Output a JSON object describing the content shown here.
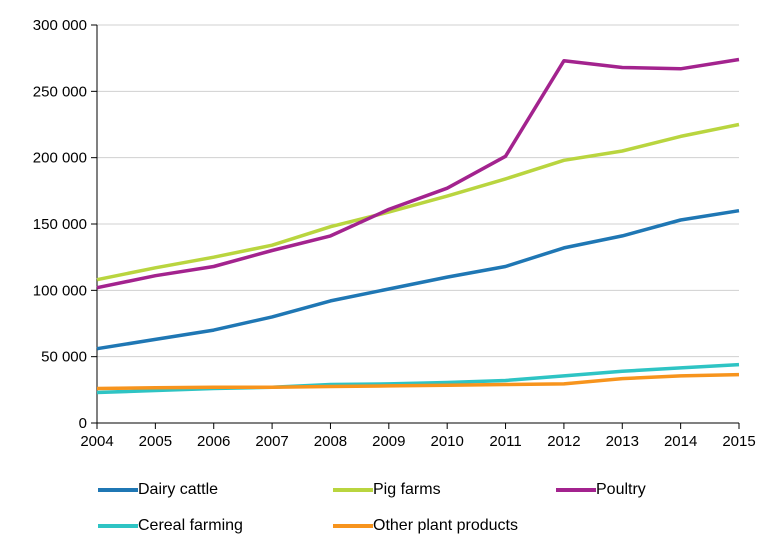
{
  "chart_data": {
    "type": "line",
    "x": [
      2004,
      2005,
      2006,
      2007,
      2008,
      2009,
      2010,
      2011,
      2012,
      2013,
      2014,
      2015
    ],
    "ylim": [
      0,
      300000
    ],
    "yticks": [
      0,
      50000,
      100000,
      150000,
      200000,
      250000,
      300000
    ],
    "ytick_labels": [
      "0",
      "50 000",
      "100 000",
      "150 000",
      "200 000",
      "250 000",
      "300 000"
    ],
    "xtick_labels": [
      "2004",
      "2005",
      "2006",
      "2007",
      "2008",
      "2009",
      "2010",
      "2011",
      "2012",
      "2013",
      "2014",
      "2015"
    ],
    "grid": true,
    "legend_position": "bottom",
    "series": [
      {
        "name": "Dairy cattle",
        "color": "#1f77b4",
        "values": [
          56000,
          63000,
          70000,
          80000,
          92000,
          101000,
          110000,
          118000,
          132000,
          141000,
          153000,
          160000
        ]
      },
      {
        "name": "Pig farms",
        "color": "#b9d53f",
        "values": [
          108000,
          117000,
          125000,
          134000,
          148000,
          159000,
          171000,
          184000,
          198000,
          205000,
          216000,
          225000
        ]
      },
      {
        "name": "Poultry",
        "color": "#a3238e",
        "values": [
          102000,
          111000,
          118000,
          130000,
          141000,
          161000,
          177000,
          201000,
          273000,
          268000,
          267000,
          274000
        ]
      },
      {
        "name": "Cereal farming",
        "color": "#2ec4c4",
        "values": [
          23000,
          24500,
          26000,
          27000,
          29000,
          29500,
          30500,
          32000,
          35500,
          39000,
          41500,
          44000
        ]
      },
      {
        "name": "Other plant products",
        "color": "#f7941d",
        "values": [
          26000,
          26500,
          27000,
          27000,
          27500,
          28000,
          28500,
          29000,
          29500,
          33500,
          35500,
          36500
        ]
      }
    ]
  }
}
